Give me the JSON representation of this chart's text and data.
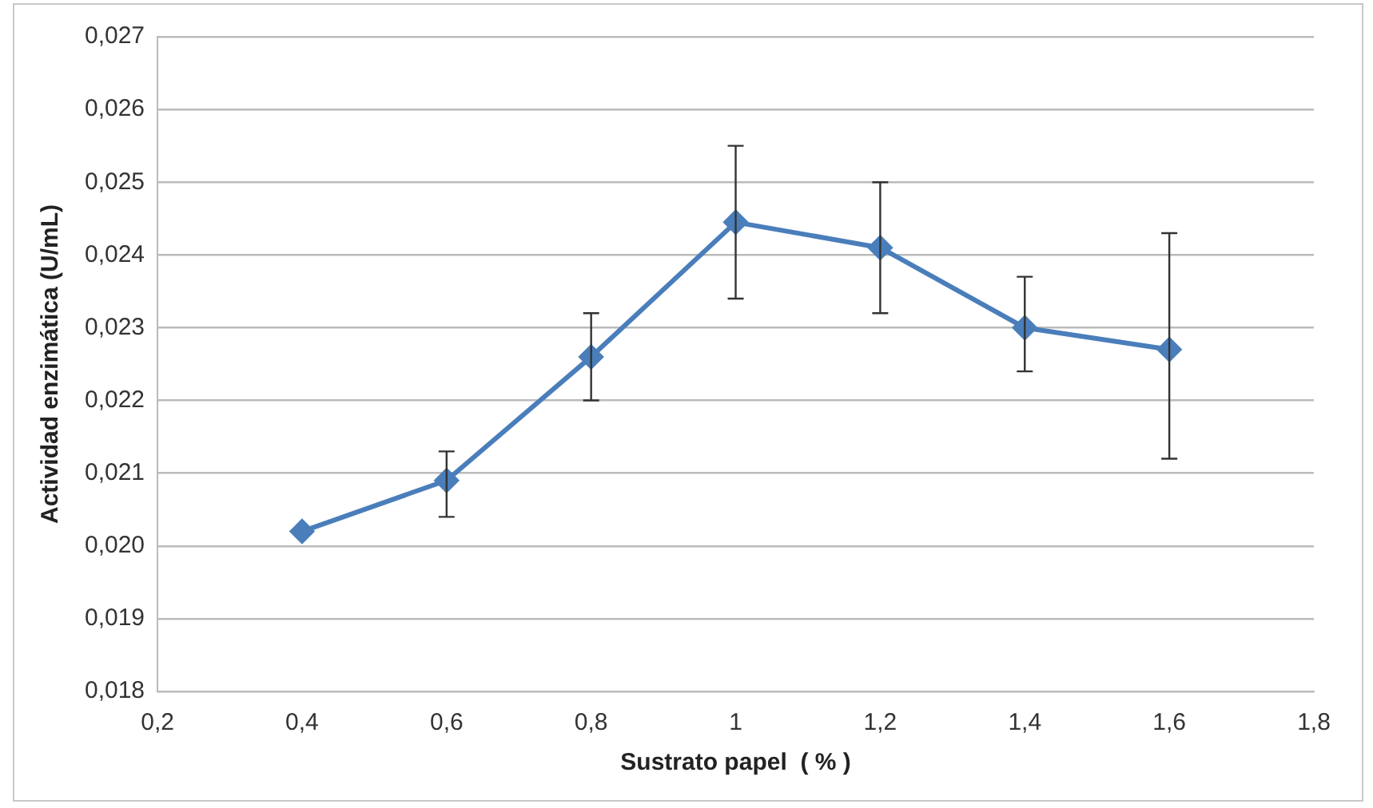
{
  "chart_data": {
    "type": "line",
    "xlabel": "Sustrato papel  ( % )",
    "ylabel": "Actividad enzimática (U/mL)",
    "x": [
      0.4,
      0.6,
      0.8,
      1,
      1.2,
      1.4,
      1.6
    ],
    "series": [
      {
        "color": "#4a7ebb",
        "values": [
          0.0202,
          0.0209,
          0.0226,
          0.02445,
          0.0241,
          0.023,
          0.0227
        ],
        "errors": [
          null,
          [
            0.0204,
            0.0213
          ],
          [
            0.022,
            0.0232
          ],
          [
            0.0234,
            0.0255
          ],
          [
            0.0232,
            0.025
          ],
          [
            0.0224,
            0.0237
          ],
          [
            0.0212,
            0.0243
          ]
        ]
      }
    ],
    "xlim": [
      0.2,
      1.8
    ],
    "xticks": [
      {
        "value": 0.2,
        "label": "0,2"
      },
      {
        "value": 0.4,
        "label": "0,4"
      },
      {
        "value": 0.6,
        "label": "0,6"
      },
      {
        "value": 0.8,
        "label": "0,8"
      },
      1,
      {
        "value": 1.2,
        "label": "1,2"
      },
      {
        "value": 1.4,
        "label": "1,4"
      },
      {
        "value": 1.6,
        "label": "1,6"
      },
      {
        "value": 1.8,
        "label": "1,8"
      }
    ],
    "ylim": [
      0.018,
      0.027
    ],
    "yticks": [
      {
        "value": 0.018,
        "label": "0,018"
      },
      {
        "value": 0.019,
        "label": "0,019"
      },
      {
        "value": 0.02,
        "label": "0,020"
      },
      {
        "value": 0.021,
        "label": "0,021"
      },
      {
        "value": 0.022,
        "label": "0,022"
      },
      {
        "value": 0.023,
        "label": "0,023"
      },
      {
        "value": 0.024,
        "label": "0,024"
      },
      {
        "value": 0.025,
        "label": "0,025"
      },
      {
        "value": 0.026,
        "label": "0,026"
      },
      {
        "value": 0.027,
        "label": "0,027"
      }
    ],
    "grid": "y",
    "legend": false,
    "marker": "diamond",
    "line_style": "solid"
  }
}
